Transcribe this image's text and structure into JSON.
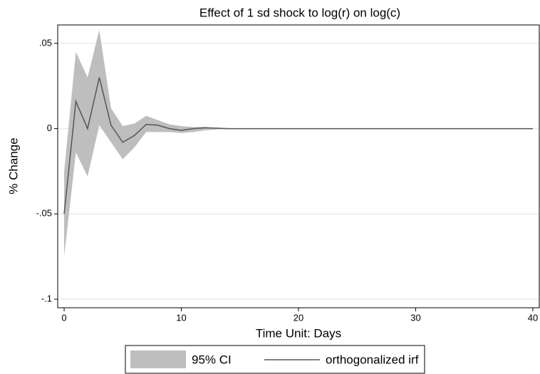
{
  "chart_data": {
    "type": "line",
    "title": "Effect of 1 sd shock to log(r) on log(c)",
    "x_label": "Time Unit: Days",
    "y_label": "% Change",
    "x": [
      0,
      1,
      2,
      3,
      4,
      5,
      6,
      7,
      8,
      9,
      10,
      11,
      12,
      13,
      14,
      15,
      16,
      17,
      18,
      19,
      20,
      21,
      22,
      23,
      24,
      25,
      26,
      27,
      28,
      29,
      30,
      31,
      32,
      33,
      34,
      35,
      36,
      37,
      38,
      39,
      40
    ],
    "series": [
      {
        "name": "95% CI",
        "color": "#bebebe",
        "lower": [
          -0.075,
          -0.014,
          -0.028,
          0.002,
          -0.008,
          -0.018,
          -0.011,
          -0.002,
          -0.002,
          -0.002,
          -0.0025,
          -0.002,
          -0.001,
          -0.0005,
          -0.0003,
          0,
          0,
          0,
          0,
          0,
          0,
          0,
          0,
          0,
          0,
          0,
          0,
          0,
          0,
          0,
          0,
          0,
          0,
          0,
          0,
          0,
          0,
          0,
          0,
          0,
          0
        ],
        "upper": [
          -0.025,
          0.045,
          0.03,
          0.058,
          0.012,
          0.0015,
          0.003,
          0.0075,
          0.005,
          0.0025,
          0.0015,
          0.001,
          0.001,
          0.0005,
          0.0003,
          0,
          0,
          0,
          0,
          0,
          0,
          0,
          0,
          0,
          0,
          0,
          0,
          0,
          0,
          0,
          0,
          0,
          0,
          0,
          0,
          0,
          0,
          0,
          0,
          0,
          0
        ]
      },
      {
        "name": "orthogonalized irf",
        "color": "#555555",
        "values": [
          -0.05,
          0.016,
          0.0,
          0.03,
          0.002,
          -0.008,
          -0.004,
          0.0025,
          0.002,
          0.0,
          -0.001,
          0.0,
          0.0005,
          0.0003,
          0,
          0,
          0,
          0,
          0,
          0,
          0,
          0,
          0,
          0,
          0,
          0,
          0,
          0,
          0,
          0,
          0,
          0,
          0,
          0,
          0,
          0,
          0,
          0,
          0,
          0,
          0
        ]
      }
    ],
    "xlim": [
      -0.55,
      40.55
    ],
    "ylim": [
      -0.105,
      0.0608
    ],
    "xticks": [
      0,
      10,
      20,
      30,
      40
    ],
    "yticks": [
      {
        "value": 0.05,
        "label": ".05"
      },
      0,
      {
        "value": -0.05,
        "label": "-.05"
      },
      {
        "value": -0.1,
        "label": "-.1"
      }
    ],
    "grid": true,
    "legend": "bottom"
  }
}
